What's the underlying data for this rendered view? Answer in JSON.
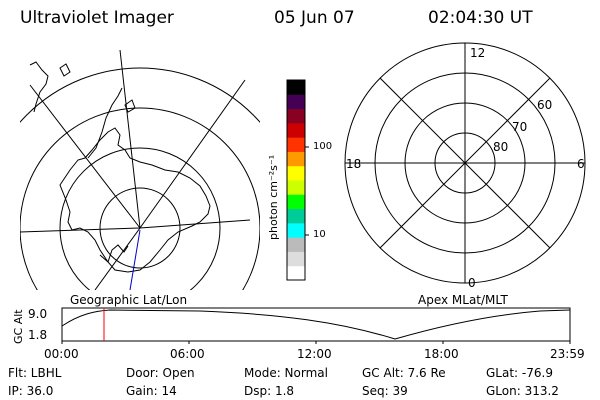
{
  "header": {
    "title": "Ultraviolet Imager",
    "date": "05 Jun 07",
    "time": "02:04:30 UT"
  },
  "maps": {
    "left_label": "Geographic Lat/Lon",
    "right_label": "Apex MLat/MLT",
    "mlt_labels": {
      "top": "12",
      "right": "6",
      "bottom": "0",
      "left": "18"
    },
    "lat_labels": [
      "60",
      "70",
      "80"
    ]
  },
  "colorbar": {
    "unit": "photon cm⁻²s⁻¹",
    "ticks": [
      "100",
      "10"
    ],
    "colors": [
      "#ffffff",
      "#dddddd",
      "#bbbbbb",
      "#00ffff",
      "#00cc99",
      "#00ff00",
      "#ccff00",
      "#ffff00",
      "#ff9900",
      "#ff3300",
      "#cc0000",
      "#880022",
      "#440055",
      "#000000"
    ]
  },
  "altitude_plot": {
    "ylabel": "GC Alt",
    "y_ticks": [
      "9.0",
      "1.8"
    ],
    "x_ticks": [
      "00:00",
      "06:00",
      "12:00",
      "18:00",
      "23:59"
    ],
    "marker_color": "#ff0000"
  },
  "footer": {
    "flt": "Flt: LBHL",
    "door": "Door: Open",
    "mode": "Mode: Normal",
    "gc_alt": "GC Alt: 7.6 Re",
    "glat": "GLat: -76.9",
    "ip": "IP: 36.0",
    "gain": "Gain: 14",
    "dsp": "Dsp:    1.8",
    "seq": "Seq: 39",
    "glon": "GLon: 313.2"
  }
}
